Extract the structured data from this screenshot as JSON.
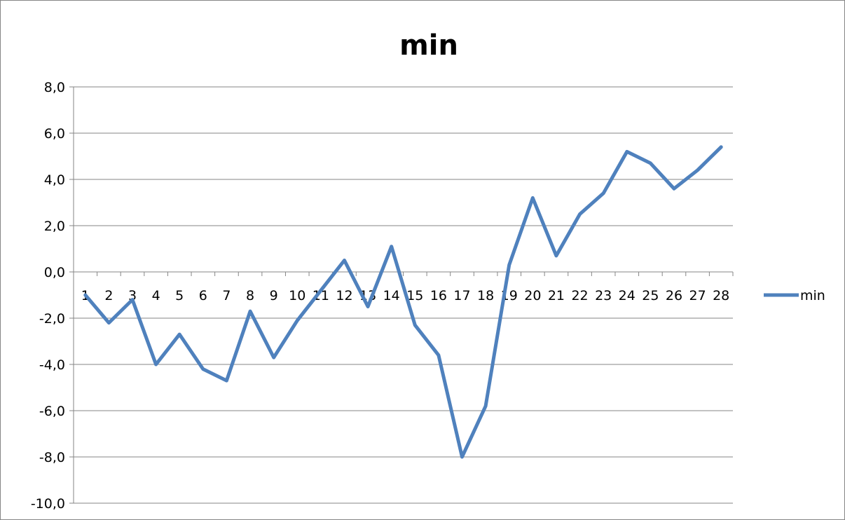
{
  "chart_data": {
    "type": "line",
    "title": "min",
    "xlabel": "",
    "ylabel": "",
    "categories": [
      "1",
      "2",
      "3",
      "4",
      "5",
      "6",
      "7",
      "8",
      "9",
      "10",
      "11",
      "12",
      "13",
      "14",
      "15",
      "16",
      "17",
      "18",
      "19",
      "20",
      "21",
      "22",
      "23",
      "24",
      "25",
      "26",
      "27",
      "28"
    ],
    "series": [
      {
        "name": "min",
        "color": "#4F81BD",
        "values": [
          -1.0,
          -2.2,
          -1.2,
          -4.0,
          -2.7,
          -4.2,
          -4.7,
          -1.7,
          -3.7,
          -2.1,
          -0.8,
          0.5,
          -1.5,
          1.1,
          -2.3,
          -3.6,
          -8.0,
          -5.8,
          0.3,
          3.2,
          0.7,
          2.5,
          3.4,
          5.2,
          4.7,
          3.6,
          4.4,
          5.4
        ]
      }
    ],
    "ylim": [
      -10,
      8
    ],
    "yticks": [
      "-10,0",
      "-8,0",
      "-6,0",
      "-4,0",
      "-2,0",
      "0,0",
      "2,0",
      "4,0",
      "6,0",
      "8,0"
    ],
    "ytick_values": [
      -10,
      -8,
      -6,
      -4,
      -2,
      0,
      2,
      4,
      6,
      8
    ],
    "grid": "horizontal",
    "legend": "right"
  }
}
